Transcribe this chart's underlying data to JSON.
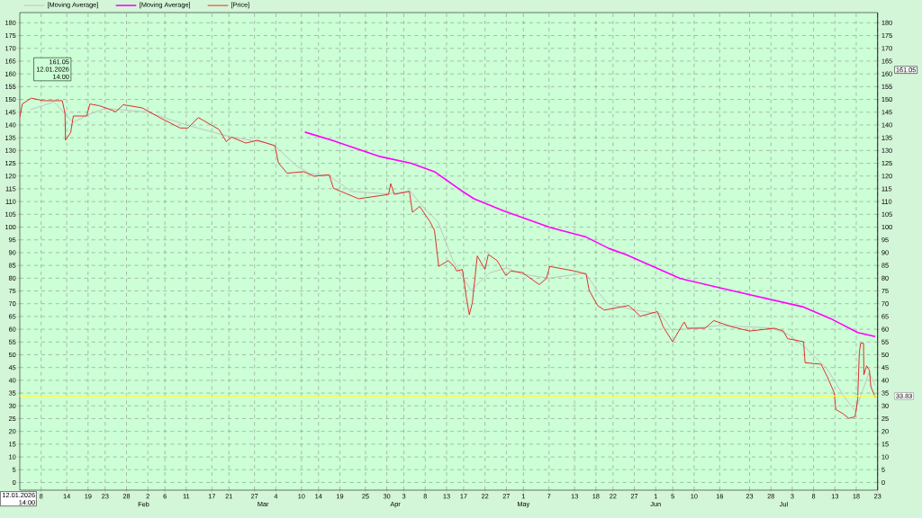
{
  "chart_data": {
    "type": "line",
    "xlim": [
      "2026-01-03",
      "2026-07-23"
    ],
    "xticks": [
      {
        "value": "2026-01-08",
        "label": "8"
      },
      {
        "value": "2026-01-14",
        "label": "14"
      },
      {
        "value": "2026-01-19",
        "label": "19"
      },
      {
        "value": "2026-01-23",
        "label": "23"
      },
      {
        "value": "2026-01-28",
        "label": "28"
      },
      {
        "value": "2026-02-02",
        "label": "2"
      },
      {
        "value": "2026-02-06",
        "label": "6"
      },
      {
        "value": "2026-02-11",
        "label": "11"
      },
      {
        "value": "2026-02-17",
        "label": "17"
      },
      {
        "value": "2026-02-21",
        "label": "21"
      },
      {
        "value": "2026-02-27",
        "label": "27"
      },
      {
        "value": "2026-03-04",
        "label": "4"
      },
      {
        "value": "2026-03-10",
        "label": "10"
      },
      {
        "value": "2026-03-14",
        "label": "14"
      },
      {
        "value": "2026-03-19",
        "label": "19"
      },
      {
        "value": "2026-03-25",
        "label": "25"
      },
      {
        "value": "2026-03-30",
        "label": "30"
      },
      {
        "value": "2026-04-03",
        "label": "3"
      },
      {
        "value": "2026-04-08",
        "label": "8"
      },
      {
        "value": "2026-04-13",
        "label": "13"
      },
      {
        "value": "2026-04-17",
        "label": "17"
      },
      {
        "value": "2026-04-22",
        "label": "22"
      },
      {
        "value": "2026-04-27",
        "label": "27"
      },
      {
        "value": "2026-05-01",
        "label": "1"
      },
      {
        "value": "2026-05-07",
        "label": "7"
      },
      {
        "value": "2026-05-13",
        "label": "13"
      },
      {
        "value": "2026-05-18",
        "label": "18"
      },
      {
        "value": "2026-05-22",
        "label": "22"
      },
      {
        "value": "2026-05-27",
        "label": "27"
      },
      {
        "value": "2026-06-01",
        "label": "1"
      },
      {
        "value": "2026-06-05",
        "label": "5"
      },
      {
        "value": "2026-06-10",
        "label": "10"
      },
      {
        "value": "2026-06-16",
        "label": "16"
      },
      {
        "value": "2026-06-23",
        "label": "23"
      },
      {
        "value": "2026-06-28",
        "label": "28"
      },
      {
        "value": "2026-07-03",
        "label": "3"
      },
      {
        "value": "2026-07-08",
        "label": "8"
      },
      {
        "value": "2026-07-13",
        "label": "13"
      },
      {
        "value": "2026-07-18",
        "label": "18"
      },
      {
        "value": "2026-07-23",
        "label": "23"
      }
    ],
    "x2lim": [
      "2026-01-03",
      "2026-07-23"
    ],
    "x2ticks": [
      {
        "value": "2026-02-01",
        "label": "Feb"
      },
      {
        "value": "2026-03-01",
        "label": "Mar"
      },
      {
        "value": "2026-04-01",
        "label": "Apr"
      },
      {
        "value": "2026-05-01",
        "label": "May"
      },
      {
        "value": "2026-06-01",
        "label": "Jun"
      },
      {
        "value": "2026-07-01",
        "label": "Jul"
      }
    ],
    "ylim": [
      -3,
      184
    ],
    "yticks": [
      0,
      5,
      10,
      15,
      20,
      25,
      30,
      35,
      40,
      45,
      50,
      55,
      60,
      65,
      70,
      75,
      80,
      85,
      90,
      95,
      100,
      105,
      110,
      115,
      120,
      125,
      130,
      135,
      140,
      145,
      150,
      155,
      160,
      165,
      170,
      175,
      180
    ],
    "y2lim": [
      -3,
      184
    ],
    "y2ticks": [
      0,
      5,
      10,
      15,
      20,
      25,
      30,
      35,
      40,
      45,
      50,
      55,
      60,
      65,
      70,
      75,
      80,
      85,
      90,
      95,
      100,
      105,
      110,
      115,
      120,
      125,
      130,
      135,
      140,
      145,
      150,
      155,
      160,
      165,
      170,
      175,
      180
    ],
    "grid": true,
    "legend": "top left",
    "series": [
      {
        "name": "[Moving Average]",
        "color": "#c0c0c0",
        "x": [
          "2026-01-05T12:00",
          "2026-01-11",
          "2026-01-15T12:00",
          "2026-01-19",
          "2026-01-23",
          "2026-02-02",
          "2026-02-11",
          "2026-02-21",
          "2026-03-01T12:00",
          "2026-03-04",
          "2026-03-08T19:00",
          "2026-03-12",
          "2026-03-16T12:00",
          "2026-03-21T17:00",
          "2026-03-30",
          "2026-04-04T12:00",
          "2026-04-08",
          "2026-04-11",
          "2026-04-14T12:00",
          "2026-04-18T17:00",
          "2026-04-23",
          "2026-04-27",
          "2026-05-01",
          "2026-05-07",
          "2026-05-15T12:00",
          "2026-05-18T19:00",
          "2026-05-20T19:00",
          "2026-05-27",
          "2026-06-02T05:00",
          "2026-06-04T17:00",
          "2026-06-08",
          "2026-06-16",
          "2026-06-28",
          "2026-07-02",
          "2026-07-06",
          "2026-07-11T04:00",
          "2026-07-15",
          "2026-07-17T18:00",
          "2026-07-19T12:00",
          "2026-07-21",
          "2026-07-22T11:00"
        ],
        "values": [
          146,
          149,
          141,
          144,
          146.5,
          145,
          140,
          135.5,
          133,
          131.5,
          124,
          121,
          120,
          114,
          113,
          114,
          107,
          102,
          86.9,
          75.2,
          82,
          84,
          81.5,
          80,
          82,
          74,
          70,
          67.5,
          66,
          59.8,
          60,
          61.5,
          60.5,
          58,
          53,
          44.5,
          34,
          28,
          36,
          43,
          38
        ]
      },
      {
        "name": "[Moving Average]",
        "color": "#ff00ff",
        "x": [
          "2026-03-10T19:00",
          "2026-03-17T04:00",
          "2026-03-28T11:00",
          "2026-04-04T16:00",
          "2026-04-10T04:00",
          "2026-04-16T17:00",
          "2026-04-19T10:00",
          "2026-04-26T06:00",
          "2026-05-07T04:00",
          "2026-05-15T17:00",
          "2026-05-21T02:00",
          "2026-05-25",
          "2026-06-06T16:00",
          "2026-06-19T15:00",
          "2026-07-05T16:00",
          "2026-07-11T20:00",
          "2026-07-18T08:00",
          "2026-07-22T11:00"
        ],
        "values": [
          137.2,
          134.0,
          127.6,
          125.0,
          121.7,
          114.0,
          111.1,
          106.4,
          99.9,
          96.1,
          91.6,
          89.3,
          79.9,
          74.8,
          68.7,
          64.3,
          58.7,
          57.1
        ]
      },
      {
        "name": "[Price]",
        "color": "#e02020",
        "x": [
          "2026-01-03",
          "2026-01-03T14:00",
          "2026-01-05T16:00",
          "2026-01-08T12:00",
          "2026-01-12T23:00",
          "2026-01-13T14:00",
          "2026-01-13T17:00",
          "2026-01-14T22:00",
          "2026-01-15T13:00",
          "2026-01-18T16:00",
          "2026-01-19T10:00",
          "2026-01-21T17:00",
          "2026-01-25T12:00",
          "2026-01-27T06:00",
          "2026-01-31T16:00",
          "2026-02-04T18:00",
          "2026-02-09T14:00",
          "2026-02-11T09:00",
          "2026-02-13T20:00",
          "2026-02-18T17:00",
          "2026-02-20T09:00",
          "2026-02-21T16:00",
          "2026-02-24T23:00",
          "2026-02-27T17:00",
          "2026-03-03T19:00",
          "2026-03-04T14:00",
          "2026-03-06T15:00",
          "2026-03-10T12:00",
          "2026-03-12T23:00",
          "2026-03-16T12:00",
          "2026-03-17T12:00",
          "2026-03-23T09:00",
          "2026-03-30T10:00",
          "2026-03-30T22:00",
          "2026-03-31T18:00",
          "2026-04-04T07:00",
          "2026-04-05",
          "2026-04-06T17:00",
          "2026-04-09T02:00",
          "2026-04-10T04:00",
          "2026-04-11T04:00",
          "2026-04-13T10:00",
          "2026-04-14T19:00",
          "2026-04-15T09:00",
          "2026-04-16T17:00",
          "2026-04-17T16:00",
          "2026-04-18T08:00",
          "2026-04-19T01:00",
          "2026-04-19T17:00",
          "2026-04-20T05:00",
          "2026-04-22",
          "2026-04-22T19:00",
          "2026-04-24T20:00",
          "2026-04-26T22:00",
          "2026-04-28T01:00",
          "2026-04-30T18:00",
          "2026-05-04T17:00",
          "2026-05-06T10:00",
          "2026-05-07T04:00",
          "2026-05-13",
          "2026-05-15T17:00",
          "2026-05-16T10:00",
          "2026-05-18T09:00",
          "2026-05-20",
          "2026-05-25T16:00",
          "2026-05-28T10:00",
          "2026-06-01T10:00",
          "2026-06-02T18:00",
          "2026-06-04T23:00",
          "2026-06-07",
          "2026-06-07T17:00",
          "2026-06-08T10:00",
          "2026-06-12T14:00",
          "2026-06-14T15:00",
          "2026-06-18T18:00",
          "2026-06-23",
          "2026-06-28T20:00",
          "2026-06-30T22:00",
          "2026-07-01T22:00",
          "2026-07-05T16:00",
          "2026-07-06",
          "2026-07-09T18:00",
          "2026-07-11T04:00",
          "2026-07-12T20:00",
          "2026-07-13T05:00",
          "2026-07-14T22:00",
          "2026-07-16T06:00",
          "2026-07-17T16:00",
          "2026-07-17T23:00",
          "2026-07-18T08:00",
          "2026-07-18T17:00",
          "2026-07-19",
          "2026-07-19T17:00",
          "2026-07-19T19:00",
          "2026-07-20T10:00",
          "2026-07-21T02:00",
          "2026-07-21T10:00",
          "2026-07-22T11:00"
        ],
        "values": [
          143,
          148.2,
          150.5,
          149.5,
          149.5,
          144.6,
          134,
          137,
          143.5,
          143.5,
          148.2,
          147.5,
          145.2,
          147.9,
          146.7,
          142.9,
          138.8,
          138.8,
          142.9,
          138.2,
          133.5,
          135.2,
          132.9,
          134.0,
          131.9,
          125.2,
          121.1,
          121.7,
          119.9,
          120.5,
          115.2,
          111.1,
          112.8,
          117.0,
          112.8,
          114.0,
          105.8,
          108.1,
          102.2,
          98.7,
          84.6,
          86.9,
          84.6,
          82.8,
          83.4,
          72.2,
          65.7,
          70.4,
          81.0,
          88.7,
          83.4,
          89.3,
          86.9,
          81.0,
          82.8,
          82.2,
          77.5,
          79.9,
          84.6,
          82.8,
          81.6,
          75.2,
          69.3,
          67.5,
          69.3,
          65.1,
          66.9,
          61.0,
          55.1,
          61.0,
          62.8,
          60.4,
          60.4,
          63.4,
          61.0,
          59.3,
          60.4,
          59.3,
          56.3,
          55.1,
          46.9,
          46.3,
          41.6,
          35.1,
          28.6,
          26.9,
          25.1,
          25.7,
          28.0,
          32.8,
          50.4,
          54.5,
          54.5,
          42.2,
          45.7,
          43.9,
          37.5,
          33.3
        ]
      }
    ],
    "ref_lines": [
      {
        "axis": "y",
        "value": 33.83,
        "label": "33.83",
        "color": "#ffff33"
      }
    ],
    "annotations": [
      "161.05 12.01.2026 14:00",
      "161.05",
      "12.01.2026 14:00"
    ]
  }
}
